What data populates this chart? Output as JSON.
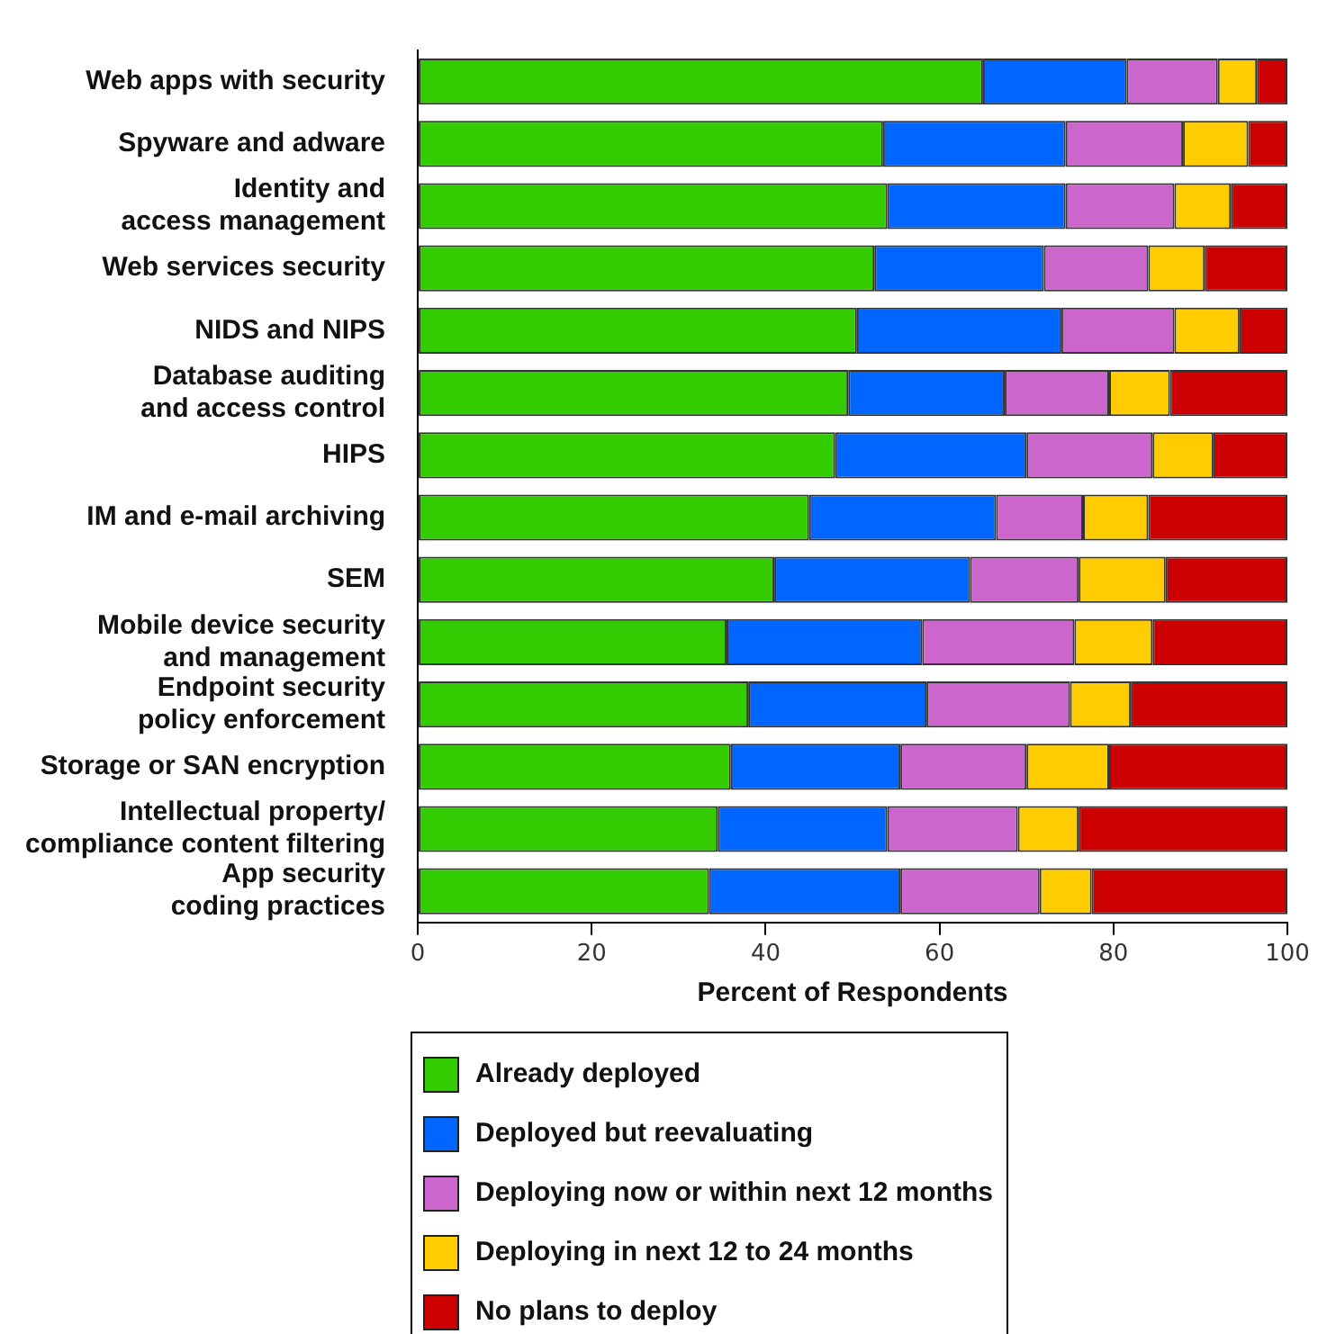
{
  "chart_data": {
    "type": "bar",
    "orientation": "horizontal",
    "stacked": true,
    "xlabel": "Percent of Respondents",
    "categories": [
      "Web apps with security",
      "Spyware and adware",
      "Identity and\naccess management",
      "Web services security",
      "NIDS and NIPS",
      "Database auditing\nand access control",
      "HIPS",
      "IM and e-mail archiving",
      "SEM",
      "Mobile device security\nand management",
      "Endpoint security\npolicy enforcement",
      "Storage or SAN encryption",
      "Intellectual property/\ncompliance content filtering",
      "App security\ncoding practices"
    ],
    "series": [
      {
        "name": "Already deployed",
        "color": "#33cc00",
        "values": [
          65,
          53.5,
          54,
          52.5,
          50.5,
          49.5,
          48,
          45,
          41,
          35.5,
          38,
          36,
          34.5,
          33.5
        ]
      },
      {
        "name": "Deployed but reevaluating",
        "color": "#0066ff",
        "values": [
          16.5,
          21,
          20.5,
          19.5,
          23.5,
          18,
          22,
          21.5,
          22.5,
          22.5,
          20.5,
          19.5,
          19.5,
          22
        ]
      },
      {
        "name": "Deploying now or within next 12 months",
        "color": "#cc66cc",
        "values": [
          10.5,
          13.5,
          12.5,
          12,
          13,
          12,
          14.5,
          10,
          12.5,
          17.5,
          16.5,
          14.5,
          15,
          16
        ]
      },
      {
        "name": "Deploying in next 12 to 24 months",
        "color": "#ffcc00",
        "values": [
          4.5,
          7.5,
          6.5,
          6.5,
          7.5,
          7,
          7,
          7.5,
          10,
          9,
          7,
          9.5,
          7,
          6
        ]
      },
      {
        "name": "No plans to deploy",
        "color": "#cc0000",
        "values": [
          3.5,
          4.5,
          6.5,
          9.5,
          5.5,
          13.5,
          8.5,
          16,
          14,
          15.5,
          18,
          20.5,
          24,
          22.5
        ]
      }
    ],
    "xlim": [
      0,
      100
    ],
    "xticks": [
      0,
      20,
      40,
      60,
      80,
      100
    ],
    "grid": false,
    "legend": "bottom"
  }
}
